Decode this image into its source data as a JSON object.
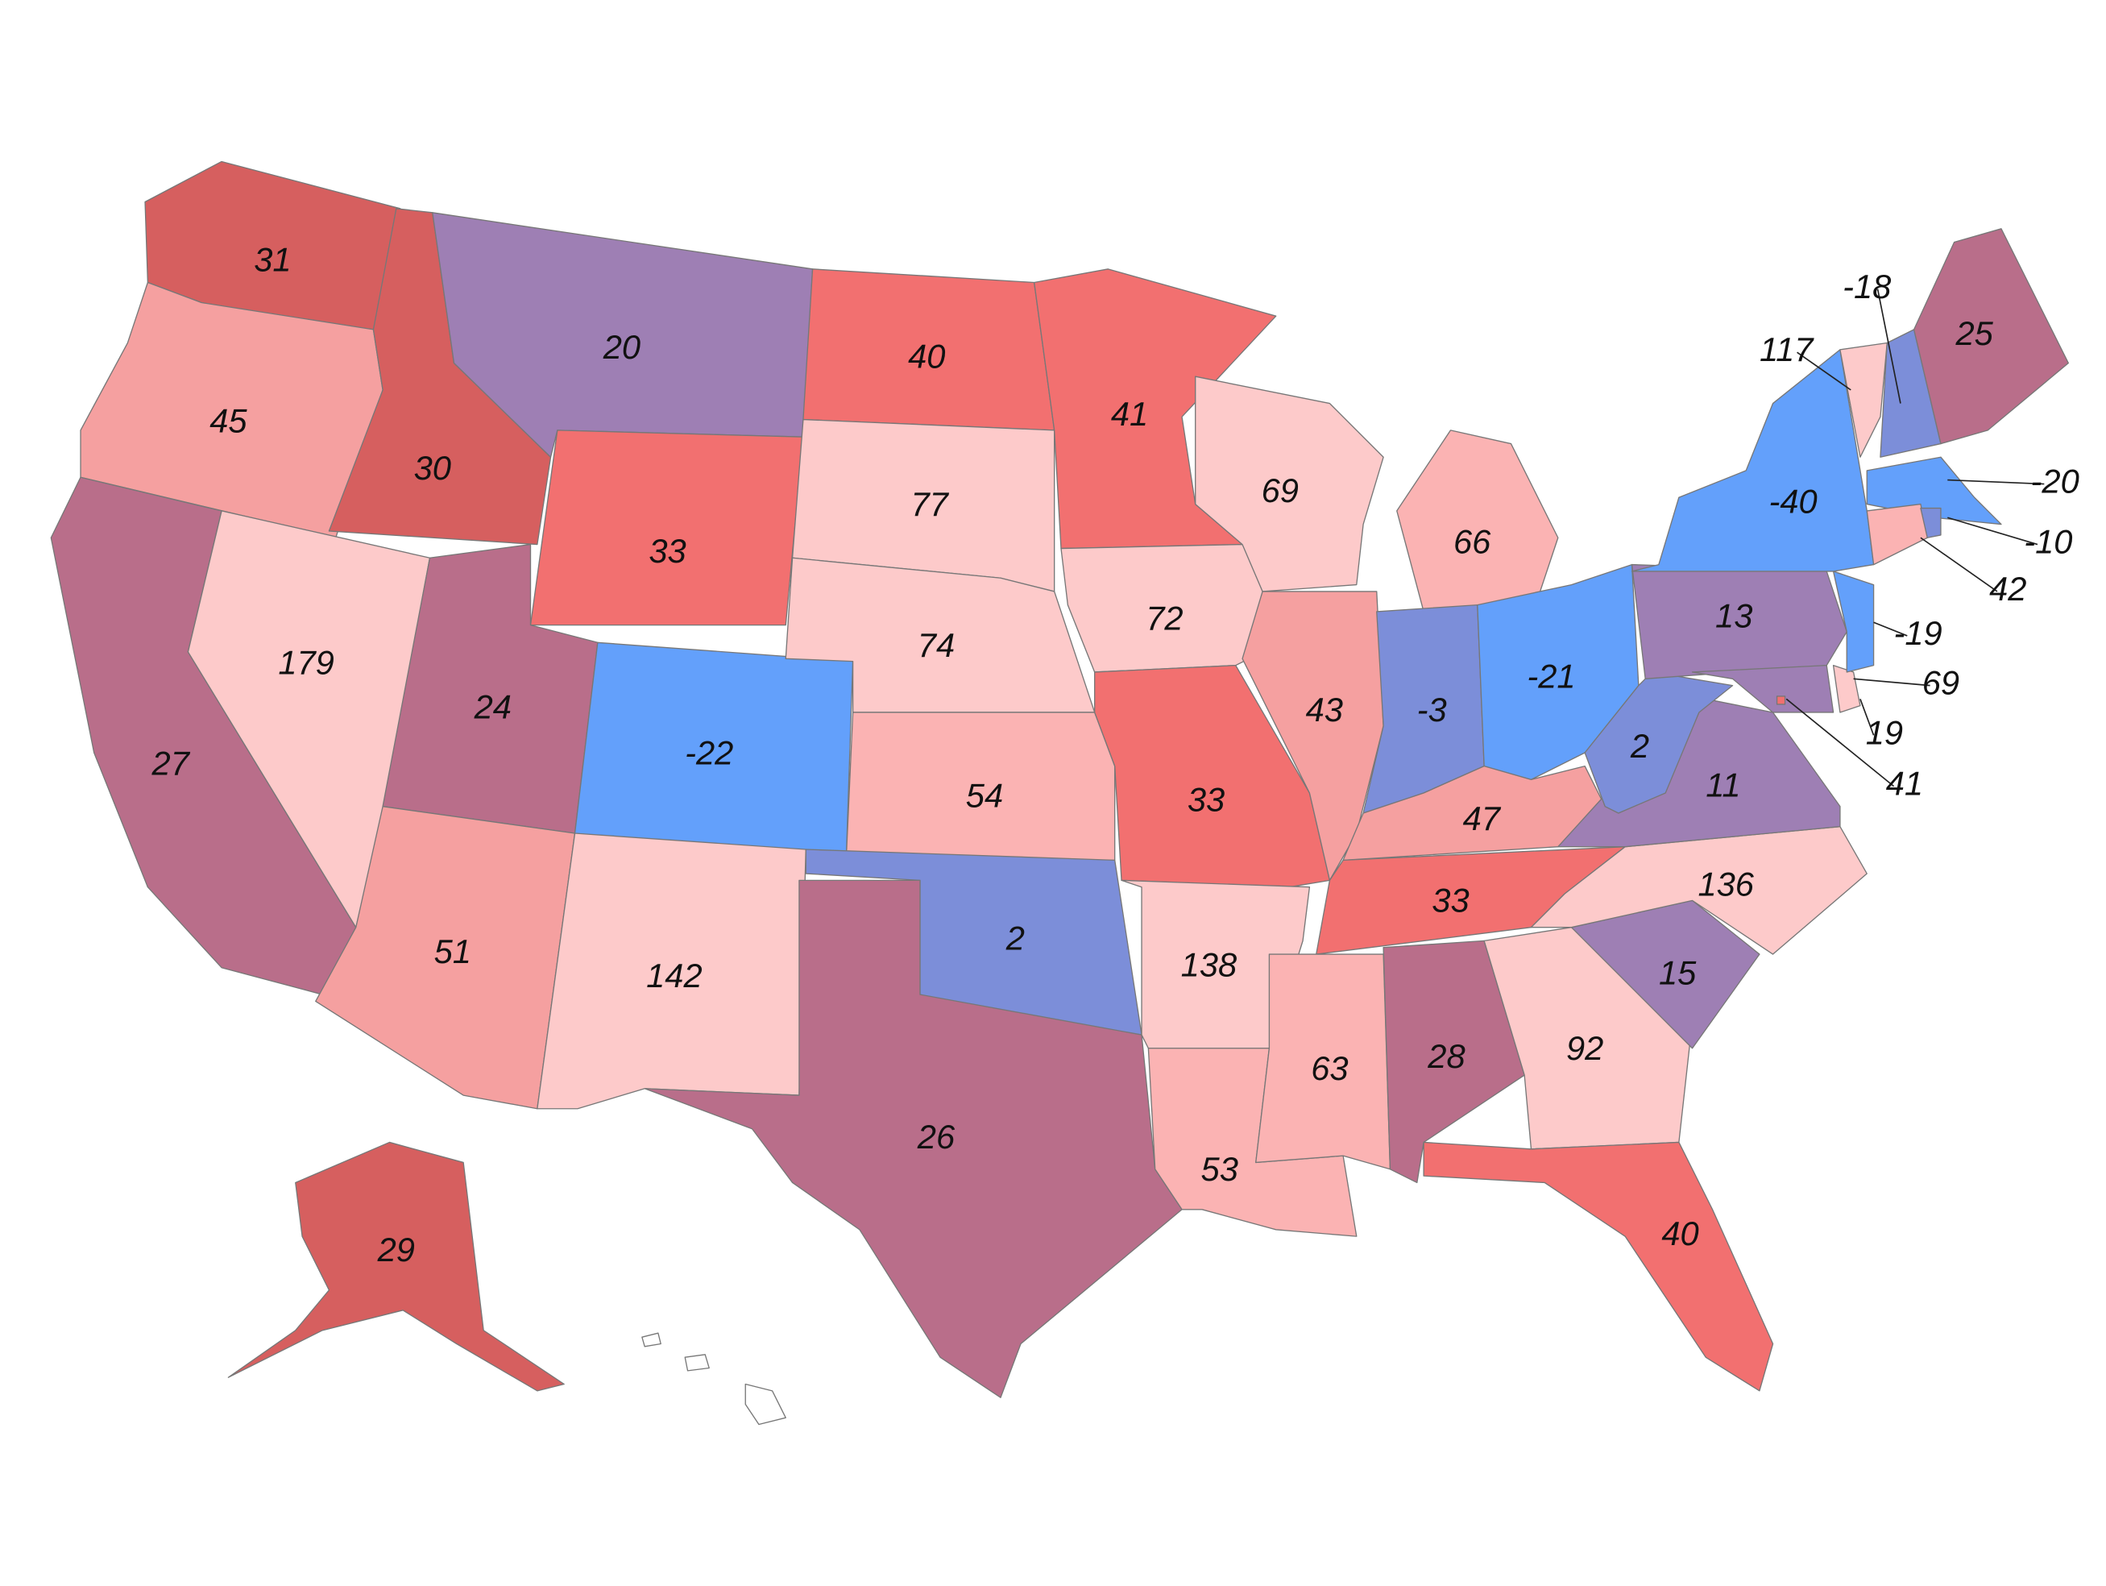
{
  "map": {
    "regions": [
      {
        "value": 31,
        "color": "#d65f5f"
      },
      {
        "value": 45,
        "color": "#f5a0a0"
      },
      {
        "value": 27,
        "color": "#b96e8a"
      },
      {
        "value": 179,
        "color": "#fdcaca"
      },
      {
        "value": 30,
        "color": "#d65f5f"
      },
      {
        "value": 20,
        "color": "#9e7fb4"
      },
      {
        "value": 33,
        "color": "#f27070"
      },
      {
        "value": 24,
        "color": "#b96e8a"
      },
      {
        "value": -22,
        "color": "#63a0fb"
      },
      {
        "value": 51,
        "color": "#f5a0a0"
      },
      {
        "value": 142,
        "color": "#fdcaca"
      },
      {
        "value": 40,
        "color": "#f27070"
      },
      {
        "value": 77,
        "color": "#fdcaca"
      },
      {
        "value": 74,
        "color": "#fdcaca"
      },
      {
        "value": 54,
        "color": "#fbb3b3"
      },
      {
        "value": 2,
        "color": "#7c8ed9"
      },
      {
        "value": 26,
        "color": "#b96e8a"
      },
      {
        "value": 41,
        "color": "#f27070"
      },
      {
        "value": 72,
        "color": "#fdcaca"
      },
      {
        "value": 33,
        "color": "#f27070"
      },
      {
        "value": 138,
        "color": "#fdcaca"
      },
      {
        "value": 53,
        "color": "#fbb3b3"
      },
      {
        "value": 69,
        "color": "#fdcaca"
      },
      {
        "value": 43,
        "color": "#f5a0a0"
      },
      {
        "value": 66,
        "color": "#fbb3b3"
      },
      {
        "value": -3,
        "color": "#7c8ed9"
      },
      {
        "value": -21,
        "color": "#63a0fb"
      },
      {
        "value": 47,
        "color": "#f5a0a0"
      },
      {
        "value": 33,
        "color": "#f27070"
      },
      {
        "value": 63,
        "color": "#fbb3b3"
      },
      {
        "value": 28,
        "color": "#b96e8a"
      },
      {
        "value": 92,
        "color": "#fdcaca"
      },
      {
        "value": 40,
        "color": "#f27070"
      },
      {
        "value": 15,
        "color": "#9e7fb4"
      },
      {
        "value": 136,
        "color": "#fdcaca"
      },
      {
        "value": 11,
        "color": "#9e7fb4"
      },
      {
        "value": 2,
        "color": "#7c8ed9"
      },
      {
        "value": 13,
        "color": "#9e7fb4"
      },
      {
        "value": 41,
        "color": "#9e7fb4"
      },
      {
        "value": 69,
        "color": "#fdcaca"
      },
      {
        "value": -19,
        "color": "#63a0fb"
      },
      {
        "value": -40,
        "color": "#63a0fb"
      },
      {
        "value": 117,
        "color": "#fdcaca"
      },
      {
        "value": -18,
        "color": "#7c8ed9"
      },
      {
        "value": 25,
        "color": "#b96e8a"
      },
      {
        "value": -20,
        "color": "#63a0fb"
      },
      {
        "value": 42,
        "color": "#fbb3b3"
      },
      {
        "value": -10,
        "color": "#7c8ed9"
      },
      {
        "value": 29,
        "color": "#d65f5f"
      },
      {
        "value": 19,
        "color": "#f27070"
      }
    ]
  }
}
